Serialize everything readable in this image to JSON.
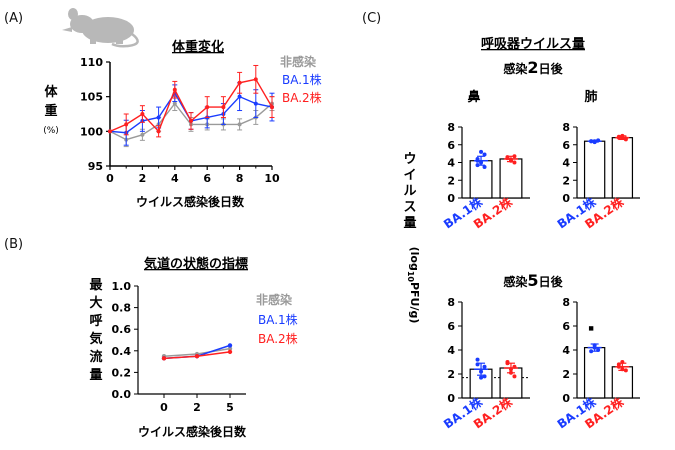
{
  "colors": {
    "uninfected": "#9a9a9a",
    "ba1": "#1a3cff",
    "ba2": "#ff2020",
    "axis": "#000000",
    "mouse": "#b8b8b8"
  },
  "panel_labels": {
    "a": "(A)",
    "b": "(B)",
    "c": "(C)"
  },
  "icon": "mouse-silhouette-icon",
  "legend": {
    "uninfected": "非感染",
    "ba1": "BA.1株",
    "ba2": "BA.2株"
  },
  "chart_data": [
    {
      "id": "A",
      "type": "line",
      "title": "体重変化",
      "xlabel": "ウイルス感染後日数",
      "ylabel": "体重",
      "yunit": "(%)",
      "xlim": [
        0,
        10
      ],
      "ylim": [
        95,
        110
      ],
      "xticks": [
        "0",
        "2",
        "4",
        "6",
        "8",
        "10"
      ],
      "yticks": [
        "95",
        "100",
        "105",
        "110"
      ],
      "series": [
        {
          "name": "非感染",
          "color": "#9a9a9a",
          "x": [
            0,
            1,
            2,
            3,
            4,
            5,
            6,
            7,
            8,
            9,
            10
          ],
          "y": [
            100,
            98.8,
            99.5,
            101.0,
            104.0,
            101.0,
            101.0,
            101.0,
            101.0,
            102.0,
            104.0
          ],
          "err": [
            0,
            1.0,
            0.8,
            1.0,
            1.0,
            1.0,
            0.8,
            0.8,
            0.8,
            1.0,
            1.0
          ]
        },
        {
          "name": "BA.1株",
          "color": "#1a3cff",
          "x": [
            0,
            1,
            2,
            3,
            4,
            5,
            6,
            7,
            8,
            9,
            10
          ],
          "y": [
            100,
            99.8,
            101.5,
            102.0,
            105.5,
            101.5,
            102.0,
            102.5,
            105.0,
            104.0,
            103.5
          ],
          "err": [
            0,
            1.8,
            1.5,
            1.5,
            1.2,
            1.2,
            1.5,
            1.5,
            2.0,
            2.0,
            2.0
          ]
        },
        {
          "name": "BA.2株",
          "color": "#ff2020",
          "x": [
            0,
            1,
            2,
            3,
            4,
            5,
            6,
            7,
            8,
            9,
            10
          ],
          "y": [
            100,
            101.0,
            102.5,
            100.0,
            106.0,
            101.5,
            103.5,
            103.5,
            107.0,
            107.5,
            103.5
          ],
          "err": [
            0,
            1.5,
            1.2,
            0.8,
            1.2,
            1.2,
            1.5,
            1.5,
            1.5,
            2.0,
            1.5
          ]
        }
      ],
      "legend": [
        "非感染",
        "BA.1株",
        "BA.2株"
      ]
    },
    {
      "id": "B",
      "type": "line",
      "title": "気道の状態の指標",
      "xlabel": "ウイルス感染後日数",
      "ylabel": "最大呼気流量",
      "ylim": [
        0.0,
        1.0
      ],
      "xticks": [
        "0",
        "2",
        "5"
      ],
      "yticks": [
        "0.0",
        "0.2",
        "0.4",
        "0.6",
        "0.8",
        "1.0"
      ],
      "series": [
        {
          "name": "非感染",
          "color": "#9a9a9a",
          "x": [
            "0",
            "2",
            "5"
          ],
          "y": [
            0.35,
            0.37,
            0.42
          ]
        },
        {
          "name": "BA.1株",
          "color": "#1a3cff",
          "x": [
            "0",
            "2",
            "5"
          ],
          "y": [
            0.33,
            0.35,
            0.45
          ]
        },
        {
          "name": "BA.2株",
          "color": "#ff2020",
          "x": [
            "0",
            "2",
            "5"
          ],
          "y": [
            0.33,
            0.35,
            0.39
          ]
        }
      ],
      "legend": [
        "非感染",
        "BA.1株",
        "BA.2株"
      ]
    },
    {
      "id": "C-day2-nose",
      "type": "bar",
      "group_title": "呼吸器ウイルス量",
      "day_label_parts": [
        "感染",
        "2",
        "日後"
      ],
      "subtitle": "鼻",
      "ylabel_main": "ウイルス量",
      "ylabel_unit_parts": [
        "(log",
        "10",
        "PFU/g)"
      ],
      "categories": [
        "BA.1株",
        "BA.2株"
      ],
      "values": [
        4.2,
        4.4
      ],
      "err": [
        0.5,
        0.3
      ],
      "points": [
        [
          4.2,
          5.2,
          3.5,
          4.4,
          4.0,
          4.9,
          3.7
        ],
        [
          4.5,
          4.3,
          4.0,
          4.6,
          4.2,
          4.7,
          4.5
        ]
      ],
      "ylim": [
        0,
        8
      ],
      "yticks": [
        "0",
        "2",
        "4",
        "6",
        "8"
      ]
    },
    {
      "id": "C-day2-lung",
      "type": "bar",
      "subtitle": "肺",
      "categories": [
        "BA.1株",
        "BA.2株"
      ],
      "values": [
        6.4,
        6.8
      ],
      "err": [
        0.1,
        0.2
      ],
      "points": [
        [
          6.4,
          6.3,
          6.5,
          6.4,
          6.4
        ],
        [
          6.8,
          7.0,
          6.6,
          6.9,
          6.8,
          6.7
        ]
      ],
      "ylim": [
        0,
        8
      ],
      "yticks": [
        "0",
        "2",
        "4",
        "6",
        "8"
      ]
    },
    {
      "id": "C-day5-nose",
      "type": "bar",
      "day_label_parts": [
        "感染",
        "5",
        "日後"
      ],
      "categories": [
        "BA.1株",
        "BA.2株"
      ],
      "values": [
        2.4,
        2.5
      ],
      "err": [
        0.5,
        0.4
      ],
      "points": [
        [
          3.2,
          2.2,
          1.8,
          2.8,
          1.7,
          2.6
        ],
        [
          3.0,
          2.1,
          1.8,
          2.9,
          2.4,
          2.6
        ]
      ],
      "limit_of_detection": 1.7,
      "ylim": [
        0,
        8
      ],
      "yticks": [
        "0",
        "2",
        "4",
        "6",
        "8"
      ]
    },
    {
      "id": "C-day5-lung",
      "type": "bar",
      "categories": [
        "BA.1株",
        "BA.2株"
      ],
      "values": [
        4.2,
        2.6
      ],
      "err": [
        0.3,
        0.3
      ],
      "points": [
        [
          5.8,
          4.2,
          4.0,
          3.9,
          4.4
        ],
        [
          2.6,
          3.0,
          2.3,
          2.8,
          2.4
        ]
      ],
      "ylim": [
        0,
        8
      ],
      "yticks": [
        "0",
        "2",
        "4",
        "6",
        "8"
      ]
    }
  ]
}
